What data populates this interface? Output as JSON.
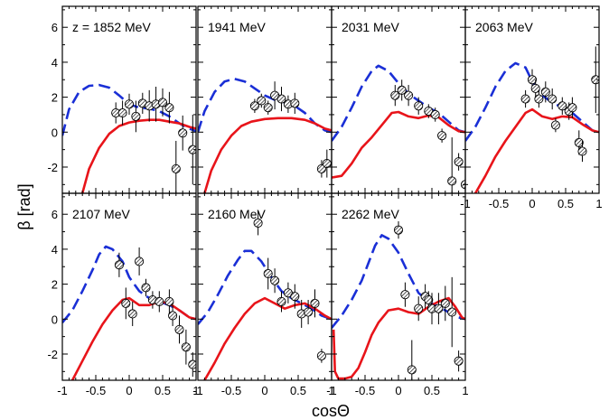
{
  "chart_data": {
    "type": "line",
    "xlabel": "cosΘ",
    "ylabel": "β [rad]",
    "xlim": [
      -1,
      1
    ],
    "ylim": [
      -3.5,
      7.2
    ],
    "xticks": [
      {
        "v": -1,
        "t": "-1"
      },
      {
        "v": -0.5,
        "t": "-0.5"
      },
      {
        "v": 0,
        "t": "0"
      },
      {
        "v": 0.5,
        "t": "0.5"
      },
      {
        "v": 1,
        "t": "1"
      }
    ],
    "yticks": [
      {
        "v": -2,
        "t": "-2"
      },
      {
        "v": 0,
        "t": "0"
      },
      {
        "v": 2,
        "t": "2"
      },
      {
        "v": 4,
        "t": "4"
      },
      {
        "v": 6,
        "t": "6"
      }
    ],
    "colors": {
      "dashed": "#1a2fd6",
      "solid": "#e8141a"
    },
    "panels": [
      {
        "label": "z = 1852 MeV",
        "dashed": [
          [
            -1,
            -0.2
          ],
          [
            -0.9,
            1.3
          ],
          [
            -0.75,
            2.3
          ],
          [
            -0.6,
            2.65
          ],
          [
            -0.45,
            2.7
          ],
          [
            -0.3,
            2.55
          ],
          [
            -0.15,
            2.1
          ],
          [
            0,
            1.6
          ],
          [
            0.15,
            1.4
          ],
          [
            0.3,
            1.35
          ],
          [
            0.45,
            1.2
          ],
          [
            0.6,
            0.9
          ],
          [
            0.75,
            0.5
          ],
          [
            0.9,
            0.2
          ],
          [
            1,
            0.05
          ]
        ],
        "solid": [
          [
            -0.7,
            -3.5
          ],
          [
            -0.6,
            -2.1
          ],
          [
            -0.45,
            -0.9
          ],
          [
            -0.3,
            -0.1
          ],
          [
            -0.15,
            0.35
          ],
          [
            0,
            0.55
          ],
          [
            0.15,
            0.65
          ],
          [
            0.3,
            0.7
          ],
          [
            0.45,
            0.7
          ],
          [
            0.6,
            0.6
          ],
          [
            0.75,
            0.5
          ],
          [
            0.9,
            0.3
          ],
          [
            1,
            0.2
          ]
        ],
        "points": [
          [
            -0.2,
            1.1,
            0.6
          ],
          [
            -0.1,
            1.1,
            0.7
          ],
          [
            0.0,
            1.6,
            0.6
          ],
          [
            0.1,
            0.9,
            0.9
          ],
          [
            0.2,
            1.65,
            0.6
          ],
          [
            0.3,
            1.5,
            0.9
          ],
          [
            0.4,
            1.6,
            1.0
          ],
          [
            0.5,
            1.7,
            0.8
          ],
          [
            0.6,
            1.4,
            0.9
          ],
          [
            0.7,
            -2.1,
            1.6
          ],
          [
            0.8,
            -0.05,
            1.0
          ],
          [
            0.95,
            -1.0,
            2.0
          ]
        ]
      },
      {
        "label": "1941 MeV",
        "dashed": [
          [
            -1,
            0
          ],
          [
            -0.9,
            1.2
          ],
          [
            -0.75,
            2.3
          ],
          [
            -0.6,
            2.9
          ],
          [
            -0.45,
            3.05
          ],
          [
            -0.3,
            2.9
          ],
          [
            -0.15,
            2.5
          ],
          [
            0,
            2.1
          ],
          [
            0.15,
            1.85
          ],
          [
            0.3,
            1.7
          ],
          [
            0.45,
            1.5
          ],
          [
            0.6,
            1.1
          ],
          [
            0.75,
            0.5
          ],
          [
            0.9,
            0.1
          ],
          [
            1,
            0
          ]
        ],
        "solid": [
          [
            -0.9,
            -3.5
          ],
          [
            -0.8,
            -2.2
          ],
          [
            -0.65,
            -1.0
          ],
          [
            -0.5,
            -0.2
          ],
          [
            -0.35,
            0.35
          ],
          [
            -0.2,
            0.6
          ],
          [
            0,
            0.75
          ],
          [
            0.2,
            0.8
          ],
          [
            0.4,
            0.8
          ],
          [
            0.6,
            0.7
          ],
          [
            0.75,
            0.5
          ],
          [
            0.9,
            0.2
          ],
          [
            1,
            0.1
          ]
        ],
        "points": [
          [
            -0.15,
            1.5,
            0.4
          ],
          [
            -0.05,
            1.8,
            0.4
          ],
          [
            0.05,
            1.4,
            0.4
          ],
          [
            0.15,
            2.1,
            0.8
          ],
          [
            0.25,
            1.9,
            0.7
          ],
          [
            0.35,
            1.6,
            0.5
          ],
          [
            0.45,
            1.65,
            0.6
          ],
          [
            0.85,
            -2.1,
            0.5
          ],
          [
            0.93,
            -1.8,
            0.8
          ]
        ]
      },
      {
        "label": "2031 MeV",
        "dashed": [
          [
            -1,
            -0.5
          ],
          [
            -0.85,
            0.3
          ],
          [
            -0.7,
            1.4
          ],
          [
            -0.55,
            2.6
          ],
          [
            -0.4,
            3.5
          ],
          [
            -0.3,
            3.8
          ],
          [
            -0.15,
            3.5
          ],
          [
            0,
            2.8
          ],
          [
            0.15,
            2.2
          ],
          [
            0.3,
            1.8
          ],
          [
            0.45,
            1.4
          ],
          [
            0.6,
            1.1
          ],
          [
            0.75,
            0.6
          ],
          [
            0.9,
            0.1
          ],
          [
            1,
            0
          ]
        ],
        "solid": [
          [
            -1,
            -2.6
          ],
          [
            -0.85,
            -2.5
          ],
          [
            -0.7,
            -1.8
          ],
          [
            -0.55,
            -0.9
          ],
          [
            -0.4,
            -0.3
          ],
          [
            -0.25,
            0.4
          ],
          [
            -0.1,
            1.1
          ],
          [
            0,
            1.15
          ],
          [
            0.15,
            0.9
          ],
          [
            0.3,
            0.8
          ],
          [
            0.45,
            0.95
          ],
          [
            0.6,
            0.85
          ],
          [
            0.75,
            0.4
          ],
          [
            0.9,
            0.05
          ],
          [
            1,
            0
          ]
        ],
        "points": [
          [
            -0.05,
            2.1,
            0.6
          ],
          [
            0.05,
            2.4,
            0.6
          ],
          [
            0.15,
            2.1,
            0.6
          ],
          [
            0.3,
            1.5,
            0.5
          ],
          [
            0.45,
            1.2,
            0.4
          ],
          [
            0.55,
            1.0,
            0.4
          ],
          [
            0.65,
            -0.2,
            0.4
          ],
          [
            0.8,
            -2.8,
            2.5
          ],
          [
            0.9,
            -1.7,
            0.5
          ],
          [
            1.0,
            -3.0,
            0.6
          ]
        ]
      },
      {
        "label": "2063 MeV",
        "dashed": [
          [
            -1,
            -0.5
          ],
          [
            -0.85,
            0.3
          ],
          [
            -0.7,
            1.4
          ],
          [
            -0.55,
            2.6
          ],
          [
            -0.4,
            3.5
          ],
          [
            -0.25,
            3.95
          ],
          [
            -0.1,
            3.7
          ],
          [
            0,
            2.9
          ],
          [
            0.15,
            2.1
          ],
          [
            0.3,
            1.7
          ],
          [
            0.45,
            1.4
          ],
          [
            0.6,
            1.1
          ],
          [
            0.75,
            0.6
          ],
          [
            0.9,
            0.1
          ],
          [
            1,
            0
          ]
        ],
        "solid": [
          [
            -0.85,
            -3.5
          ],
          [
            -0.7,
            -2.5
          ],
          [
            -0.55,
            -1.4
          ],
          [
            -0.4,
            -0.5
          ],
          [
            -0.25,
            0.3
          ],
          [
            -0.1,
            1.1
          ],
          [
            0,
            1.3
          ],
          [
            0.15,
            0.9
          ],
          [
            0.3,
            0.75
          ],
          [
            0.45,
            0.9
          ],
          [
            0.6,
            0.85
          ],
          [
            0.75,
            0.45
          ],
          [
            0.9,
            0.1
          ],
          [
            1,
            0
          ]
        ],
        "points": [
          [
            -0.1,
            1.9,
            0.5
          ],
          [
            0.0,
            3.0,
            0.6
          ],
          [
            0.05,
            2.5,
            0.5
          ],
          [
            0.1,
            1.9,
            0.5
          ],
          [
            0.2,
            2.3,
            0.6
          ],
          [
            0.3,
            1.9,
            0.6
          ],
          [
            0.35,
            0.4,
            0.4
          ],
          [
            0.45,
            1.5,
            0.5
          ],
          [
            0.55,
            1.2,
            0.5
          ],
          [
            0.6,
            1.4,
            0.6
          ],
          [
            0.7,
            -0.6,
            0.7
          ],
          [
            0.75,
            -1.1,
            0.6
          ],
          [
            0.95,
            3.0,
            1.9
          ]
        ]
      },
      {
        "label": "2107 MeV",
        "dashed": [
          [
            -1,
            -0.2
          ],
          [
            -0.85,
            0.5
          ],
          [
            -0.7,
            1.6
          ],
          [
            -0.55,
            2.8
          ],
          [
            -0.45,
            3.7
          ],
          [
            -0.35,
            4.15
          ],
          [
            -0.25,
            4.0
          ],
          [
            -0.1,
            3.3
          ],
          [
            0,
            2.4
          ],
          [
            0.15,
            1.6
          ],
          [
            0.3,
            1.2
          ],
          [
            0.45,
            1.0
          ],
          [
            0.6,
            0.8
          ],
          [
            0.75,
            0.5
          ],
          [
            0.9,
            0.1
          ],
          [
            1,
            0
          ]
        ],
        "solid": [
          [
            -0.85,
            -3.5
          ],
          [
            -0.7,
            -2.4
          ],
          [
            -0.55,
            -1.3
          ],
          [
            -0.4,
            -0.3
          ],
          [
            -0.25,
            0.5
          ],
          [
            -0.1,
            1.1
          ],
          [
            0,
            1.2
          ],
          [
            0.15,
            0.8
          ],
          [
            0.3,
            0.8
          ],
          [
            0.45,
            1.0
          ],
          [
            0.6,
            0.9
          ],
          [
            0.75,
            0.5
          ],
          [
            0.9,
            0.1
          ],
          [
            1,
            0
          ]
        ],
        "points": [
          [
            -0.15,
            3.1,
            0.7
          ],
          [
            -0.05,
            0.9,
            0.9
          ],
          [
            0.05,
            0.3,
            0.7
          ],
          [
            0.15,
            3.3,
            0.8
          ],
          [
            0.25,
            1.8,
            0.5
          ],
          [
            0.35,
            1.1,
            0.5
          ],
          [
            0.45,
            1.0,
            0.6
          ],
          [
            0.6,
            1.0,
            0.7
          ],
          [
            0.65,
            0.2,
            0.6
          ],
          [
            0.75,
            -0.6,
            0.8
          ],
          [
            0.85,
            -1.6,
            1.0
          ],
          [
            0.95,
            -2.6,
            0.7
          ]
        ]
      },
      {
        "label": "2160 MeV",
        "dashed": [
          [
            -1,
            -0.3
          ],
          [
            -0.85,
            0.4
          ],
          [
            -0.7,
            1.4
          ],
          [
            -0.55,
            2.5
          ],
          [
            -0.4,
            3.4
          ],
          [
            -0.3,
            3.9
          ],
          [
            -0.2,
            3.9
          ],
          [
            -0.05,
            3.3
          ],
          [
            0.1,
            2.4
          ],
          [
            0.25,
            1.6
          ],
          [
            0.4,
            1.2
          ],
          [
            0.55,
            0.9
          ],
          [
            0.7,
            0.6
          ],
          [
            0.85,
            0.2
          ],
          [
            1,
            0
          ]
        ],
        "solid": [
          [
            -0.9,
            -3.5
          ],
          [
            -0.75,
            -2.5
          ],
          [
            -0.6,
            -1.4
          ],
          [
            -0.45,
            -0.5
          ],
          [
            -0.3,
            0.3
          ],
          [
            -0.15,
            0.9
          ],
          [
            0,
            1.2
          ],
          [
            0.15,
            0.9
          ],
          [
            0.3,
            0.6
          ],
          [
            0.45,
            0.8
          ],
          [
            0.6,
            0.9
          ],
          [
            0.75,
            0.6
          ],
          [
            0.9,
            0.2
          ],
          [
            1,
            0
          ]
        ],
        "points": [
          [
            -0.1,
            5.5,
            0.7
          ],
          [
            0.05,
            2.6,
            0.9
          ],
          [
            0.15,
            2.2,
            0.7
          ],
          [
            0.25,
            1.0,
            0.6
          ],
          [
            0.35,
            1.5,
            0.6
          ],
          [
            0.45,
            1.3,
            0.7
          ],
          [
            0.55,
            0.3,
            0.8
          ],
          [
            0.65,
            0.4,
            0.7
          ],
          [
            0.75,
            0.9,
            0.8
          ],
          [
            0.85,
            -2.1,
            0.4
          ]
        ]
      },
      {
        "label": "2262 MeV",
        "dashed": [
          [
            -1,
            -0.5
          ],
          [
            -0.85,
            0.2
          ],
          [
            -0.7,
            1.1
          ],
          [
            -0.55,
            2.2
          ],
          [
            -0.45,
            3.2
          ],
          [
            -0.35,
            4.2
          ],
          [
            -0.25,
            4.8
          ],
          [
            -0.15,
            4.6
          ],
          [
            0,
            3.8
          ],
          [
            0.15,
            2.6
          ],
          [
            0.3,
            1.5
          ],
          [
            0.45,
            1.0
          ],
          [
            0.6,
            0.7
          ],
          [
            0.75,
            0.4
          ],
          [
            0.9,
            0.1
          ],
          [
            1,
            0
          ]
        ],
        "solid": [
          [
            -0.97,
            -0.6
          ],
          [
            -0.95,
            -3.0
          ],
          [
            -0.9,
            -3.4
          ],
          [
            -0.8,
            -3.4
          ],
          [
            -0.7,
            -3.3
          ],
          [
            -0.6,
            -2.8
          ],
          [
            -0.5,
            -1.9
          ],
          [
            -0.4,
            -0.9
          ],
          [
            -0.3,
            -0.2
          ],
          [
            -0.15,
            0.5
          ],
          [
            0,
            0.6
          ],
          [
            0.15,
            0.4
          ],
          [
            0.3,
            0.3
          ],
          [
            0.45,
            0.7
          ],
          [
            0.6,
            1.0
          ],
          [
            0.75,
            1.2
          ],
          [
            0.85,
            0.7
          ],
          [
            0.95,
            0.1
          ],
          [
            1,
            0
          ]
        ],
        "points": [
          [
            0.0,
            5.1,
            0.5
          ],
          [
            0.1,
            1.4,
            0.7
          ],
          [
            0.2,
            -2.9,
            1.7
          ],
          [
            0.3,
            0.6,
            0.7
          ],
          [
            0.4,
            1.3,
            0.7
          ],
          [
            0.45,
            1.1,
            0.5
          ],
          [
            0.5,
            0.6,
            0.9
          ],
          [
            0.6,
            0.6,
            0.9
          ],
          [
            0.7,
            0.9,
            1.0
          ],
          [
            0.8,
            0.4,
            2.0
          ],
          [
            0.9,
            -2.4,
            0.6
          ]
        ]
      }
    ]
  }
}
